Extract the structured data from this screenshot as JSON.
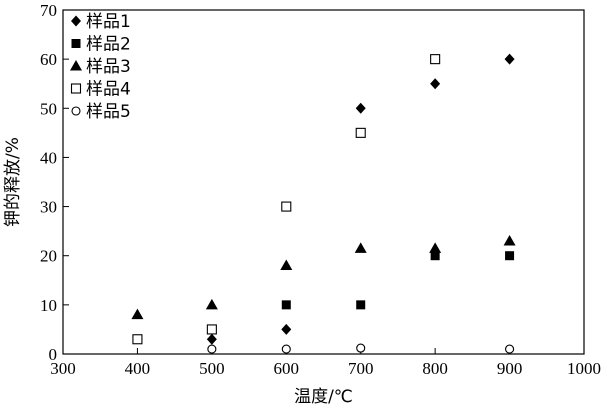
{
  "chart_data": {
    "type": "scatter",
    "title": "",
    "xlabel": "温度/℃",
    "ylabel": "钾的释放/%",
    "xlim": [
      300,
      1000
    ],
    "ylim": [
      0,
      70
    ],
    "xticks": [
      300,
      400,
      500,
      600,
      700,
      800,
      900,
      1000
    ],
    "yticks": [
      0,
      10,
      20,
      30,
      40,
      50,
      60,
      70
    ],
    "grid": false,
    "legend_position": "top-left",
    "series": [
      {
        "name": "样品1",
        "marker": "diamond-filled",
        "color": "#000000",
        "points": [
          [
            500,
            3
          ],
          [
            600,
            5
          ],
          [
            700,
            50
          ],
          [
            800,
            55
          ],
          [
            900,
            60
          ]
        ]
      },
      {
        "name": "样品2",
        "marker": "square-filled",
        "color": "#000000",
        "points": [
          [
            600,
            10
          ],
          [
            700,
            10
          ],
          [
            800,
            20
          ],
          [
            900,
            20
          ]
        ]
      },
      {
        "name": "样品3",
        "marker": "triangle-filled",
        "color": "#000000",
        "points": [
          [
            400,
            8
          ],
          [
            500,
            10
          ],
          [
            600,
            18
          ],
          [
            700,
            21.5
          ],
          [
            800,
            21.5
          ],
          [
            900,
            23
          ]
        ]
      },
      {
        "name": "样品4",
        "marker": "square-open",
        "color": "#000000",
        "points": [
          [
            400,
            3
          ],
          [
            500,
            5
          ],
          [
            600,
            30
          ],
          [
            700,
            45
          ],
          [
            800,
            60
          ]
        ]
      },
      {
        "name": "样品5",
        "marker": "circle-open",
        "color": "#000000",
        "points": [
          [
            500,
            1
          ],
          [
            600,
            1
          ],
          [
            700,
            1.2
          ],
          [
            900,
            1
          ]
        ]
      }
    ]
  }
}
